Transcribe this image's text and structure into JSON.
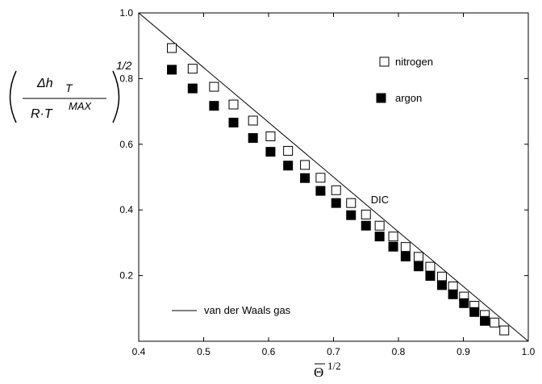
{
  "chart_data": {
    "type": "scatter",
    "xlim": [
      0.4,
      1.0
    ],
    "ylim": [
      0.0,
      1.0
    ],
    "x_ticks": [
      "0.4",
      "0.5",
      "0.6",
      "0.7",
      "0.8",
      "0.9",
      "1.0"
    ],
    "y_ticks": [
      "0.2",
      "0.4",
      "0.6",
      "0.8",
      "1.0"
    ],
    "x_ticks_values": [
      0.4,
      0.5,
      0.6,
      0.7,
      0.8,
      0.9,
      1.0
    ],
    "y_ticks_values": [
      0.2,
      0.4,
      0.6,
      0.8,
      1.0
    ],
    "xlabel": {
      "symbol": "Θ",
      "exponent": "1/2"
    },
    "ylabel": {
      "numerator": "Δh",
      "numerator_sub": "T",
      "denominator_main": "R·T",
      "denominator_sup": "MAX",
      "exponent": "1/2"
    },
    "legend_position": "top-right",
    "series": [
      {
        "name": "nitrogen",
        "marker": "open-square",
        "x": [
          0.451,
          0.483,
          0.516,
          0.546,
          0.576,
          0.603,
          0.63,
          0.656,
          0.68,
          0.704,
          0.727,
          0.75,
          0.771,
          0.792,
          0.811,
          0.831,
          0.849,
          0.867,
          0.884,
          0.901,
          0.917,
          0.933,
          0.948,
          0.963
        ],
        "y": [
          0.893,
          0.83,
          0.775,
          0.721,
          0.672,
          0.624,
          0.58,
          0.537,
          0.498,
          0.46,
          0.421,
          0.386,
          0.352,
          0.319,
          0.287,
          0.257,
          0.227,
          0.197,
          0.167,
          0.136,
          0.108,
          0.08,
          0.057,
          0.033
        ]
      },
      {
        "name": "argon",
        "marker": "filled-square",
        "x": [
          0.451,
          0.483,
          0.516,
          0.546,
          0.576,
          0.603,
          0.63,
          0.656,
          0.68,
          0.704,
          0.727,
          0.75,
          0.771,
          0.792,
          0.811,
          0.831,
          0.849,
          0.867,
          0.884,
          0.901,
          0.917,
          0.933
        ],
        "y": [
          0.827,
          0.77,
          0.717,
          0.666,
          0.619,
          0.577,
          0.535,
          0.497,
          0.458,
          0.421,
          0.384,
          0.352,
          0.319,
          0.288,
          0.258,
          0.228,
          0.199,
          0.171,
          0.143,
          0.116,
          0.089,
          0.062
        ]
      }
    ],
    "line": {
      "name": "van der Waals gas",
      "x": [
        0.4,
        1.0
      ],
      "y": [
        1.0,
        0.0
      ]
    },
    "annotations": [
      {
        "text": "DIC",
        "x": 0.76,
        "y": 0.43
      }
    ]
  }
}
